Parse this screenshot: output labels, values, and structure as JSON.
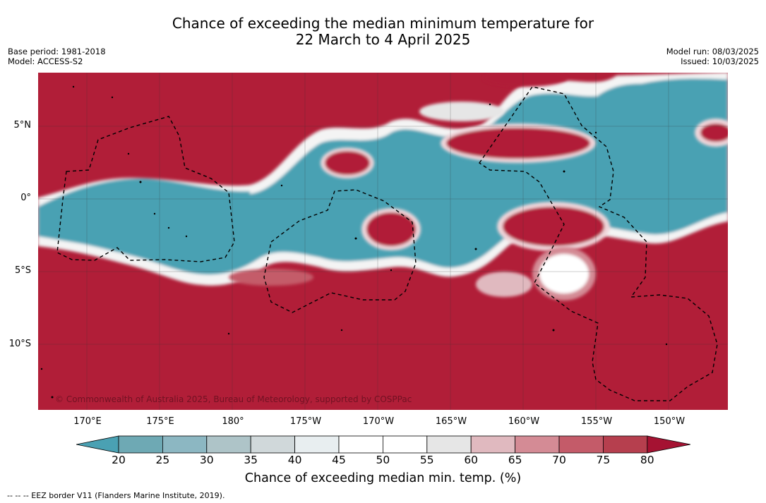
{
  "title": {
    "line1": "Chance of exceeding the median minimum temperature for",
    "line2": "22 March to 4 April 2025"
  },
  "meta_left": {
    "base_period": "Base period: 1981-2018",
    "model": "Model: ACCESS-S2"
  },
  "meta_right": {
    "model_run": "Model run: 08/03/2025",
    "issued": "Issued: 10/03/2025"
  },
  "map": {
    "latitude_labels": [
      "5°N",
      "0°",
      "5°S",
      "10°S"
    ],
    "longitude_labels": [
      "170°E",
      "175°E",
      "180°",
      "175°W",
      "170°W",
      "165°W",
      "160°W",
      "155°W",
      "150°W"
    ],
    "copyright": "© Commonwealth of Australia 2025, Bureau of Meteorology, supported by COSPPac"
  },
  "colorbar": {
    "ticks": [
      "20",
      "25",
      "30",
      "35",
      "40",
      "45",
      "50",
      "55",
      "60",
      "65",
      "70",
      "75",
      "80"
    ],
    "label": "Chance of exceeding median min. temp. (%)",
    "colors": [
      "#4aa1b3",
      "#6ea9b4",
      "#8cb7c2",
      "#aec4c8",
      "#d0d8da",
      "#e8eef0",
      "#ffffff",
      "#ffffff",
      "#e6e6e6",
      "#e0b9bf",
      "#d48b95",
      "#c45b69",
      "#b63f4e",
      "#b11e38",
      "#a51232"
    ]
  },
  "footnote": "--  --  -- EEZ border V11 (Flanders Marine Institute, 2019)."
}
